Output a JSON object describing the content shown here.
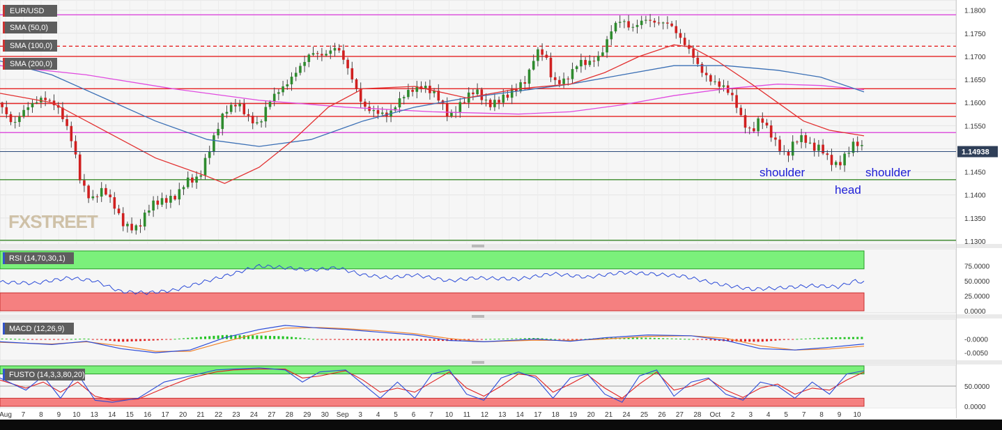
{
  "chart_data": [
    {
      "type": "candlestick",
      "symbol": "EUR/USD",
      "indicators": [
        "SMA (50,0)",
        "SMA (100,0)",
        "SMA (200,0)"
      ],
      "ylim": [
        1.13,
        1.181
      ],
      "y_ticks": [
        "1.1800",
        "1.1750",
        "1.1700",
        "1.1650",
        "1.1600",
        "1.1550",
        "1.1500",
        "1.1450",
        "1.1400",
        "1.1350",
        "1.1300"
      ],
      "last_price": "1.14938",
      "x_labels": [
        "Aug",
        "7",
        "8",
        "9",
        "10",
        "13",
        "14",
        "15",
        "16",
        "17",
        "20",
        "21",
        "22",
        "23",
        "24",
        "27",
        "28",
        "29",
        "30",
        "Sep",
        "3",
        "4",
        "5",
        "6",
        "7",
        "10",
        "11",
        "12",
        "13",
        "14",
        "17",
        "18",
        "19",
        "20",
        "21",
        "24",
        "25",
        "26",
        "27",
        "28",
        "Oct",
        "2",
        "3",
        "4",
        "5",
        "7",
        "8",
        "9",
        "10"
      ],
      "price_path": [
        [
          0,
          1.16
        ],
        [
          0.015,
          1.154
        ],
        [
          0.03,
          1.158
        ],
        [
          0.05,
          1.162
        ],
        [
          0.065,
          1.1605
        ],
        [
          0.075,
          1.156
        ],
        [
          0.085,
          1.15
        ],
        [
          0.093,
          1.142
        ],
        [
          0.105,
          1.138
        ],
        [
          0.12,
          1.142
        ],
        [
          0.135,
          1.138
        ],
        [
          0.14,
          1.135
        ],
        [
          0.15,
          1.133
        ],
        [
          0.16,
          1.132
        ],
        [
          0.175,
          1.137
        ],
        [
          0.19,
          1.139
        ],
        [
          0.205,
          1.141
        ],
        [
          0.215,
          1.144
        ],
        [
          0.23,
          1.143
        ],
        [
          0.245,
          1.15
        ],
        [
          0.26,
          1.158
        ],
        [
          0.275,
          1.161
        ],
        [
          0.29,
          1.157
        ],
        [
          0.3,
          1.155
        ],
        [
          0.31,
          1.159
        ],
        [
          0.33,
          1.163
        ],
        [
          0.345,
          1.168
        ],
        [
          0.36,
          1.172
        ],
        [
          0.375,
          1.17
        ],
        [
          0.39,
          1.171
        ],
        [
          0.41,
          1.164
        ],
        [
          0.42,
          1.16
        ],
        [
          0.435,
          1.159
        ],
        [
          0.45,
          1.157
        ],
        [
          0.47,
          1.161
        ],
        [
          0.49,
          1.164
        ],
        [
          0.505,
          1.163
        ],
        [
          0.52,
          1.157
        ],
        [
          0.535,
          1.159
        ],
        [
          0.55,
          1.162
        ],
        [
          0.565,
          1.16
        ],
        [
          0.58,
          1.162
        ],
        [
          0.6,
          1.163
        ],
        [
          0.61,
          1.164
        ],
        [
          0.62,
          1.17
        ],
        [
          0.63,
          1.1705
        ],
        [
          0.64,
          1.165
        ],
        [
          0.655,
          1.166
        ],
        [
          0.67,
          1.169
        ],
        [
          0.68,
          1.1675
        ],
        [
          0.695,
          1.169
        ],
        [
          0.71,
          1.177
        ],
        [
          0.72,
          1.179
        ],
        [
          0.73,
          1.177
        ],
        [
          0.745,
          1.178
        ],
        [
          0.76,
          1.176
        ],
        [
          0.775,
          1.1765
        ],
        [
          0.79,
          1.174
        ],
        [
          0.8,
          1.172
        ],
        [
          0.81,
          1.168
        ],
        [
          0.82,
          1.165
        ],
        [
          0.83,
          1.163
        ],
        [
          0.84,
          1.162
        ],
        [
          0.85,
          1.16
        ],
        [
          0.86,
          1.156
        ],
        [
          0.87,
          1.1545
        ],
        [
          0.88,
          1.158
        ],
        [
          0.89,
          1.154
        ],
        [
          0.9,
          1.15
        ],
        [
          0.91,
          1.147
        ],
        [
          0.92,
          1.151
        ],
        [
          0.93,
          1.1525
        ],
        [
          0.94,
          1.151
        ],
        [
          0.95,
          1.1515
        ],
        [
          0.96,
          1.148
        ],
        [
          0.97,
          1.146
        ],
        [
          0.98,
          1.148
        ],
        [
          0.99,
          1.1505
        ],
        [
          1.0,
          1.1494
        ]
      ],
      "sma_50_path": [
        [
          0,
          1.162
        ],
        [
          0.06,
          1.16
        ],
        [
          0.12,
          1.154
        ],
        [
          0.18,
          1.148
        ],
        [
          0.24,
          1.144
        ],
        [
          0.26,
          1.1425
        ],
        [
          0.3,
          1.146
        ],
        [
          0.34,
          1.152
        ],
        [
          0.38,
          1.159
        ],
        [
          0.42,
          1.163
        ],
        [
          0.48,
          1.1635
        ],
        [
          0.54,
          1.161
        ],
        [
          0.6,
          1.163
        ],
        [
          0.66,
          1.164
        ],
        [
          0.7,
          1.1665
        ],
        [
          0.74,
          1.17
        ],
        [
          0.78,
          1.1725
        ],
        [
          0.8,
          1.172
        ],
        [
          0.83,
          1.169
        ],
        [
          0.87,
          1.164
        ],
        [
          0.9,
          1.16
        ],
        [
          0.93,
          1.156
        ],
        [
          0.96,
          1.154
        ],
        [
          1.0,
          1.1528
        ]
      ],
      "sma_100_path": [
        [
          0,
          1.169
        ],
        [
          0.06,
          1.166
        ],
        [
          0.12,
          1.161
        ],
        [
          0.18,
          1.156
        ],
        [
          0.24,
          1.152
        ],
        [
          0.3,
          1.1505
        ],
        [
          0.36,
          1.152
        ],
        [
          0.42,
          1.156
        ],
        [
          0.48,
          1.159
        ],
        [
          0.54,
          1.161
        ],
        [
          0.6,
          1.1625
        ],
        [
          0.66,
          1.164
        ],
        [
          0.72,
          1.166
        ],
        [
          0.78,
          1.168
        ],
        [
          0.84,
          1.168
        ],
        [
          0.9,
          1.167
        ],
        [
          0.95,
          1.1655
        ],
        [
          1.0,
          1.1623
        ]
      ],
      "sma_200_path": [
        [
          0,
          1.168
        ],
        [
          0.1,
          1.166
        ],
        [
          0.2,
          1.163
        ],
        [
          0.3,
          1.1605
        ],
        [
          0.4,
          1.159
        ],
        [
          0.5,
          1.158
        ],
        [
          0.6,
          1.1575
        ],
        [
          0.66,
          1.158
        ],
        [
          0.72,
          1.1595
        ],
        [
          0.78,
          1.1615
        ],
        [
          0.84,
          1.163
        ],
        [
          0.9,
          1.164
        ],
        [
          0.95,
          1.1637
        ],
        [
          1.0,
          1.1628
        ]
      ],
      "levels": [
        {
          "value": 1.179,
          "color": "#dd55dd",
          "dash": false
        },
        {
          "value": 1.1722,
          "color": "#e52222",
          "dash": true
        },
        {
          "value": 1.17,
          "color": "#e52222",
          "dash": false
        },
        {
          "value": 1.163,
          "color": "#e52222",
          "dash": false
        },
        {
          "value": 1.1598,
          "color": "#e52222",
          "dash": false
        },
        {
          "value": 1.157,
          "color": "#e52222",
          "dash": false
        },
        {
          "value": 1.1535,
          "color": "#dd55dd",
          "dash": false
        },
        {
          "value": 1.1433,
          "color": "#3a8a2a",
          "dash": false
        },
        {
          "value": 1.1302,
          "color": "#3a8a2a",
          "dash": false
        }
      ],
      "annotations": [
        "shoulder",
        "head",
        "shoulder"
      ],
      "watermark": "FXSTREET"
    },
    {
      "type": "line",
      "indicator": "RSI (14,70,30,1)",
      "ylim": [
        0,
        100
      ],
      "y_ticks": [
        "75.0000",
        "50.0000",
        "25.0000",
        "0.0000"
      ],
      "overbought": 70,
      "oversold": 30,
      "values_path": [
        [
          0,
          48
        ],
        [
          0.04,
          46
        ],
        [
          0.08,
          55
        ],
        [
          0.11,
          50
        ],
        [
          0.14,
          32
        ],
        [
          0.17,
          30
        ],
        [
          0.2,
          34
        ],
        [
          0.24,
          50
        ],
        [
          0.27,
          62
        ],
        [
          0.3,
          75
        ],
        [
          0.33,
          72
        ],
        [
          0.36,
          68
        ],
        [
          0.39,
          72
        ],
        [
          0.42,
          60
        ],
        [
          0.45,
          55
        ],
        [
          0.48,
          60
        ],
        [
          0.52,
          50
        ],
        [
          0.55,
          55
        ],
        [
          0.6,
          53
        ],
        [
          0.64,
          62
        ],
        [
          0.68,
          56
        ],
        [
          0.72,
          64
        ],
        [
          0.75,
          62
        ],
        [
          0.79,
          58
        ],
        [
          0.83,
          45
        ],
        [
          0.87,
          36
        ],
        [
          0.9,
          38
        ],
        [
          0.94,
          42
        ],
        [
          0.97,
          40
        ],
        [
          0.99,
          50
        ],
        [
          1.0,
          47
        ]
      ]
    },
    {
      "type": "line",
      "indicator": "MACD (12,26,9)",
      "ylim": [
        -0.007,
        0.0065
      ],
      "y_ticks": [
        "-0.0000",
        "-0.0050"
      ],
      "macd_path": [
        [
          0,
          -0.001
        ],
        [
          0.06,
          -0.002
        ],
        [
          0.1,
          -0.0008
        ],
        [
          0.14,
          -0.0035
        ],
        [
          0.18,
          -0.005
        ],
        [
          0.22,
          -0.004
        ],
        [
          0.26,
          0.0005
        ],
        [
          0.3,
          0.0035
        ],
        [
          0.33,
          0.005
        ],
        [
          0.37,
          0.004
        ],
        [
          0.4,
          0.0035
        ],
        [
          0.44,
          0.0025
        ],
        [
          0.48,
          0.0015
        ],
        [
          0.52,
          -0.0005
        ],
        [
          0.56,
          -0.001
        ],
        [
          0.62,
          0.0
        ],
        [
          0.66,
          -0.0008
        ],
        [
          0.7,
          0.0005
        ],
        [
          0.75,
          0.0015
        ],
        [
          0.8,
          0.0012
        ],
        [
          0.84,
          -0.0005
        ],
        [
          0.88,
          -0.0035
        ],
        [
          0.92,
          -0.004
        ],
        [
          0.96,
          -0.003
        ],
        [
          1.0,
          -0.0018
        ]
      ],
      "signal_path": [
        [
          0,
          -0.0012
        ],
        [
          0.06,
          -0.0018
        ],
        [
          0.1,
          -0.001
        ],
        [
          0.14,
          -0.0025
        ],
        [
          0.18,
          -0.0045
        ],
        [
          0.22,
          -0.0045
        ],
        [
          0.26,
          -0.001
        ],
        [
          0.3,
          0.0022
        ],
        [
          0.33,
          0.004
        ],
        [
          0.37,
          0.0042
        ],
        [
          0.4,
          0.0038
        ],
        [
          0.44,
          0.003
        ],
        [
          0.48,
          0.002
        ],
        [
          0.52,
          0.0002
        ],
        [
          0.56,
          -0.001
        ],
        [
          0.62,
          -0.0004
        ],
        [
          0.66,
          -0.0005
        ],
        [
          0.7,
          0.0
        ],
        [
          0.75,
          0.001
        ],
        [
          0.8,
          0.0012
        ],
        [
          0.84,
          0.0003
        ],
        [
          0.88,
          -0.0025
        ],
        [
          0.92,
          -0.004
        ],
        [
          0.96,
          -0.0036
        ],
        [
          1.0,
          -0.0026
        ]
      ]
    },
    {
      "type": "line",
      "indicator": "FUSTO (14,3,3,80,20)",
      "ylim": [
        0,
        100
      ],
      "y_ticks": [
        "50.0000",
        "0.0000"
      ],
      "overbought": 80,
      "oversold": 20,
      "k_path": [
        [
          0,
          70
        ],
        [
          0.03,
          40
        ],
        [
          0.05,
          75
        ],
        [
          0.07,
          20
        ],
        [
          0.09,
          80
        ],
        [
          0.11,
          15
        ],
        [
          0.13,
          10
        ],
        [
          0.16,
          20
        ],
        [
          0.19,
          60
        ],
        [
          0.22,
          75
        ],
        [
          0.25,
          90
        ],
        [
          0.27,
          92
        ],
        [
          0.3,
          95
        ],
        [
          0.33,
          90
        ],
        [
          0.35,
          60
        ],
        [
          0.37,
          85
        ],
        [
          0.4,
          90
        ],
        [
          0.42,
          55
        ],
        [
          0.44,
          20
        ],
        [
          0.46,
          60
        ],
        [
          0.48,
          20
        ],
        [
          0.5,
          80
        ],
        [
          0.52,
          90
        ],
        [
          0.54,
          30
        ],
        [
          0.56,
          15
        ],
        [
          0.58,
          70
        ],
        [
          0.6,
          85
        ],
        [
          0.62,
          70
        ],
        [
          0.64,
          20
        ],
        [
          0.66,
          70
        ],
        [
          0.68,
          80
        ],
        [
          0.7,
          30
        ],
        [
          0.72,
          10
        ],
        [
          0.74,
          75
        ],
        [
          0.76,
          90
        ],
        [
          0.78,
          25
        ],
        [
          0.8,
          60
        ],
        [
          0.82,
          70
        ],
        [
          0.84,
          30
        ],
        [
          0.86,
          15
        ],
        [
          0.88,
          60
        ],
        [
          0.9,
          50
        ],
        [
          0.92,
          20
        ],
        [
          0.94,
          60
        ],
        [
          0.96,
          30
        ],
        [
          0.98,
          80
        ],
        [
          1.0,
          88
        ]
      ],
      "d_path": [
        [
          0,
          65
        ],
        [
          0.03,
          45
        ],
        [
          0.05,
          60
        ],
        [
          0.07,
          35
        ],
        [
          0.09,
          60
        ],
        [
          0.11,
          25
        ],
        [
          0.13,
          15
        ],
        [
          0.16,
          18
        ],
        [
          0.19,
          45
        ],
        [
          0.22,
          70
        ],
        [
          0.25,
          85
        ],
        [
          0.27,
          90
        ],
        [
          0.3,
          92
        ],
        [
          0.33,
          92
        ],
        [
          0.35,
          70
        ],
        [
          0.37,
          75
        ],
        [
          0.4,
          88
        ],
        [
          0.42,
          65
        ],
        [
          0.44,
          35
        ],
        [
          0.46,
          45
        ],
        [
          0.48,
          35
        ],
        [
          0.5,
          60
        ],
        [
          0.52,
          85
        ],
        [
          0.54,
          45
        ],
        [
          0.56,
          25
        ],
        [
          0.58,
          50
        ],
        [
          0.6,
          80
        ],
        [
          0.62,
          75
        ],
        [
          0.64,
          35
        ],
        [
          0.66,
          55
        ],
        [
          0.68,
          78
        ],
        [
          0.7,
          45
        ],
        [
          0.72,
          20
        ],
        [
          0.74,
          55
        ],
        [
          0.76,
          85
        ],
        [
          0.78,
          40
        ],
        [
          0.8,
          50
        ],
        [
          0.82,
          68
        ],
        [
          0.84,
          40
        ],
        [
          0.86,
          22
        ],
        [
          0.88,
          45
        ],
        [
          0.9,
          55
        ],
        [
          0.92,
          30
        ],
        [
          0.94,
          45
        ],
        [
          0.96,
          40
        ],
        [
          0.98,
          65
        ],
        [
          1.0,
          85
        ]
      ]
    }
  ]
}
